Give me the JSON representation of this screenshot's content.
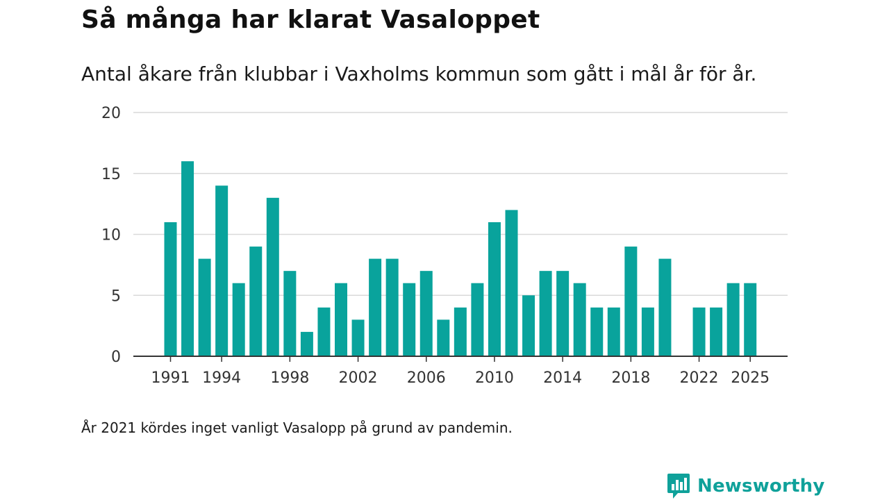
{
  "header": {
    "title": "Så många har klarat Vasaloppet",
    "subtitle": "Antal åkare från klubbar i Vaxholms kommun som gått i mål år för år."
  },
  "footer": {
    "note": "År 2021 kördes inget vanligt Vasalopp på grund av pandemin.",
    "brand": "Newsworthy"
  },
  "colors": {
    "bar": "#09a39c",
    "grid": "#d9d9d9",
    "axis": "#333333",
    "brand": "#0fa19a"
  },
  "chart_data": {
    "type": "bar",
    "title": "Så många har klarat Vasaloppet",
    "xlabel": "",
    "ylabel": "",
    "ylim": [
      0,
      20
    ],
    "yticks": [
      0,
      5,
      10,
      15,
      20
    ],
    "xticks": [
      1991,
      1994,
      1998,
      2002,
      2006,
      2010,
      2014,
      2018,
      2022,
      2025
    ],
    "grid": true,
    "categories": [
      1991,
      1992,
      1993,
      1994,
      1995,
      1996,
      1997,
      1998,
      1999,
      2000,
      2001,
      2002,
      2003,
      2004,
      2005,
      2006,
      2007,
      2008,
      2009,
      2010,
      2011,
      2012,
      2013,
      2014,
      2015,
      2016,
      2017,
      2018,
      2019,
      2020,
      2021,
      2022,
      2023,
      2024,
      2025
    ],
    "values": [
      11,
      16,
      8,
      14,
      6,
      9,
      13,
      7,
      2,
      4,
      6,
      3,
      8,
      8,
      6,
      7,
      3,
      4,
      6,
      11,
      12,
      5,
      7,
      7,
      6,
      4,
      4,
      9,
      4,
      8,
      null,
      4,
      4,
      6,
      6
    ]
  }
}
